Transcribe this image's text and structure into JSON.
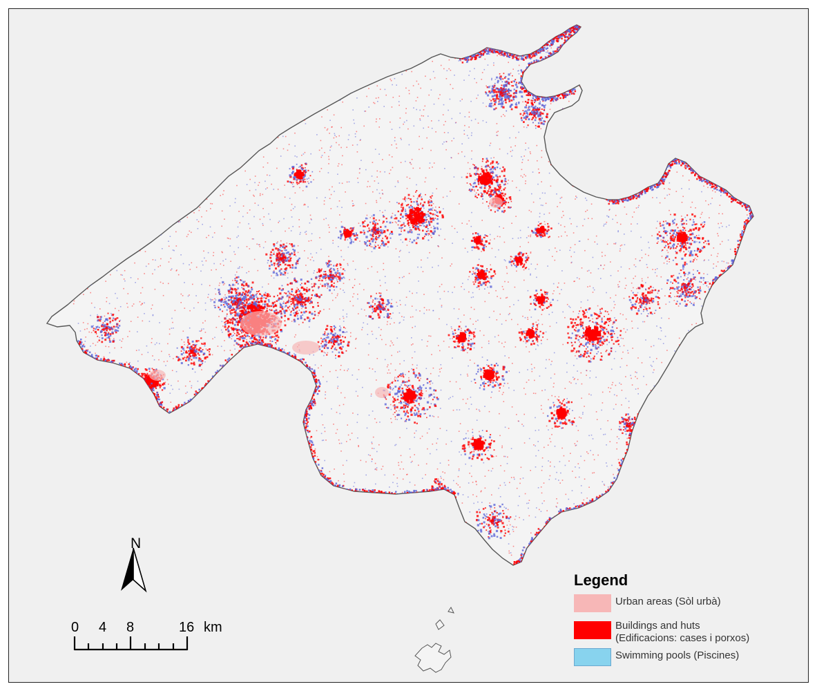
{
  "colors": {
    "background": "#f0f0f0",
    "island_fill": "#f4f4f4",
    "coastline": "#555555",
    "urban": "#f7b7b7",
    "buildings": "#ff0000",
    "pools": "#5e66d8",
    "pools_legend": "#88d3ee"
  },
  "north_arrow": {
    "label": "N"
  },
  "scale_bar": {
    "ticks": [
      "0",
      "4",
      "8",
      "16"
    ],
    "unit": "km"
  },
  "legend": {
    "title": "Legend",
    "items": [
      {
        "label_lines": [
          "Urban areas (Sòl urbà)"
        ],
        "color": "#f7b7b7"
      },
      {
        "label_lines": [
          "Buildings and huts",
          "(Edificacions: cases i porxos)"
        ],
        "color": "#ff0000"
      },
      {
        "label_lines": [
          "Swimming pools (Piscines)"
        ],
        "color": "#88d3ee"
      }
    ]
  }
}
